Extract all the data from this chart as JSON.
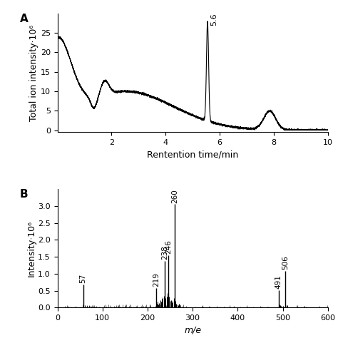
{
  "panel_A": {
    "label": "A",
    "xlabel": "Rentention time/min",
    "ylabel": "Total ion intensity·10⁶",
    "xlim": [
      0,
      10
    ],
    "ylim": [
      -0.5,
      30
    ],
    "yticks": [
      0,
      5,
      10,
      15,
      20,
      25
    ],
    "xticks": [
      2,
      4,
      6,
      8,
      10
    ],
    "annotation_text": "5.6",
    "peak_x": 5.55,
    "peak_height": 25.5
  },
  "panel_B": {
    "label": "B",
    "xlabel": "m/e",
    "ylabel": "Intensity·10⁶",
    "xlim": [
      0,
      600
    ],
    "ylim": [
      0,
      3.5
    ],
    "yticks": [
      0.0,
      0.5,
      1.0,
      1.5,
      2.0,
      2.5,
      3.0
    ],
    "xticks": [
      0,
      100,
      200,
      300,
      400,
      500,
      600
    ],
    "labeled_peaks": [
      {
        "mz": 57,
        "intensity": 0.68,
        "label": "57"
      },
      {
        "mz": 219,
        "intensity": 0.58,
        "label": "219"
      },
      {
        "mz": 238,
        "intensity": 1.38,
        "label": "238"
      },
      {
        "mz": 246,
        "intensity": 1.55,
        "label": "246"
      },
      {
        "mz": 260,
        "intensity": 3.05,
        "label": "260"
      },
      {
        "mz": 491,
        "intensity": 0.52,
        "label": "491"
      },
      {
        "mz": 506,
        "intensity": 1.08,
        "label": "506"
      }
    ],
    "extra_peaks": [
      [
        220,
        0.12
      ],
      [
        222,
        0.18
      ],
      [
        224,
        0.1
      ],
      [
        226,
        0.14
      ],
      [
        228,
        0.22
      ],
      [
        230,
        0.18
      ],
      [
        232,
        0.25
      ],
      [
        234,
        0.3
      ],
      [
        236,
        0.35
      ],
      [
        240,
        0.28
      ],
      [
        242,
        0.32
      ],
      [
        244,
        0.42
      ],
      [
        248,
        0.32
      ],
      [
        250,
        0.2
      ],
      [
        252,
        0.22
      ],
      [
        254,
        0.16
      ],
      [
        256,
        0.2
      ],
      [
        258,
        0.28
      ],
      [
        262,
        0.2
      ],
      [
        264,
        0.12
      ],
      [
        266,
        0.1
      ],
      [
        268,
        0.08
      ],
      [
        270,
        0.12
      ],
      [
        272,
        0.1
      ],
      [
        60,
        0.07
      ],
      [
        65,
        0.05
      ],
      [
        70,
        0.04
      ],
      [
        75,
        0.03
      ],
      [
        492,
        0.1
      ],
      [
        494,
        0.07
      ],
      [
        496,
        0.05
      ],
      [
        500,
        0.05
      ],
      [
        508,
        0.08
      ],
      [
        510,
        0.06
      ]
    ]
  },
  "figure": {
    "bg_color": "#ffffff",
    "line_color": "#000000",
    "fontsize_label": 9,
    "fontsize_tick": 8,
    "fontsize_annot": 8,
    "fontsize_panel": 11
  }
}
